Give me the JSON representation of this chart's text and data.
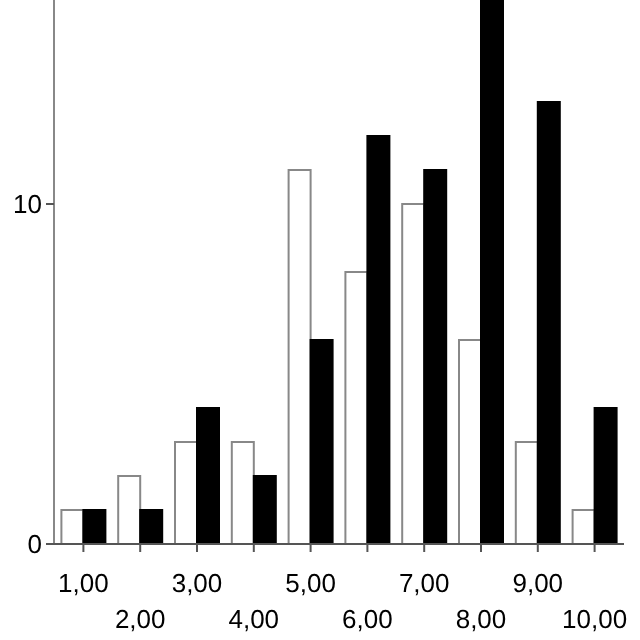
{
  "chart_data": {
    "type": "bar",
    "categories": [
      "1,00",
      "2,00",
      "3,00",
      "4,00",
      "5,00",
      "6,00",
      "7,00",
      "8,00",
      "9,00",
      "10,00"
    ],
    "series": [
      {
        "color": "#ffffff",
        "values": [
          1,
          2,
          3,
          3,
          11,
          8,
          10,
          6,
          3,
          1
        ]
      },
      {
        "color": "#000000",
        "values": [
          1,
          1,
          4,
          2,
          6,
          12,
          11,
          16,
          13,
          4
        ]
      }
    ],
    "ylim": [
      0,
      16
    ],
    "yticks": [
      0,
      10
    ],
    "grid": false
  }
}
